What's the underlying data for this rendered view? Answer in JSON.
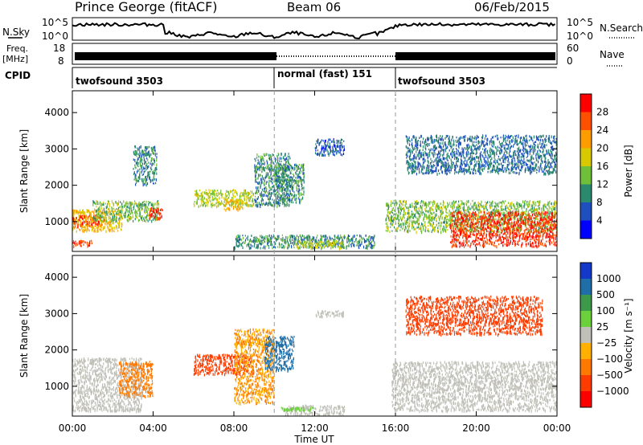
{
  "header": {
    "title": "Prince George (fitACF)",
    "beam": "Beam 06",
    "date": "06/Feb/2015"
  },
  "noise_panel": {
    "left_label": "N.Sky",
    "right_label": "N.Search",
    "left_ticks": [
      "10^5",
      "10^0"
    ],
    "right_ticks": [
      "10^5",
      "10^0"
    ]
  },
  "freq_panel": {
    "label_line1": "Freq.",
    "label_line2": "[MHz]",
    "left_ticks": [
      "18",
      "8"
    ],
    "right_ticks": [
      "60",
      "0"
    ],
    "right_label": "Nave"
  },
  "cpid_panel": {
    "label": "CPID",
    "segments": [
      {
        "name": "twofsound 3503",
        "start": 0,
        "end": 10
      },
      {
        "name": "normal (fast) 151",
        "start": 10,
        "end": 16
      },
      {
        "name": "twofsound 3503",
        "start": 16,
        "end": 24
      }
    ]
  },
  "time_axis": {
    "label": "Time UT",
    "ticks": [
      "00:00",
      "04:00",
      "08:00",
      "12:00",
      "16:00",
      "20:00",
      "00:00"
    ],
    "range_hours": [
      0,
      24
    ],
    "mode_change_hours": [
      10,
      16
    ]
  },
  "power_panel": {
    "ylabel": "Slant Range [km]",
    "yticks": [
      "1000",
      "2000",
      "3000",
      "4000"
    ],
    "colorbar_label": "Power [dB]",
    "colorbar_ticks": [
      "4",
      "8",
      "12",
      "16",
      "20",
      "24",
      "28"
    ],
    "colors": [
      "#0000ff",
      "#1f4fbf",
      "#2b8a6e",
      "#6fbf3a",
      "#d8c800",
      "#ff9c00",
      "#ff5000",
      "#ff0000"
    ]
  },
  "velocity_panel": {
    "ylabel": "Slant Range [km]",
    "yticks": [
      "1000",
      "2000",
      "3000",
      "4000"
    ],
    "colorbar_label": "Velocity [m s⁻¹]",
    "colorbar_ticks": [
      "1000",
      "500",
      "100",
      "25",
      "−25",
      "−100",
      "−500",
      "−1000"
    ],
    "colors": [
      "#1438c8",
      "#1f6ea8",
      "#3d9a4a",
      "#6ccf3c",
      "#c0c0b8",
      "#ffb000",
      "#ff7800",
      "#ff3c00",
      "#ff0000"
    ]
  },
  "chart_data": {
    "type": "heatmap",
    "title": "Prince George (fitACF)",
    "xlabel": "Time UT",
    "ylabel": "Slant Range [km]",
    "xlim_hours": [
      0,
      24
    ],
    "ylim_km": [
      180,
      4600
    ],
    "power_regions": [
      {
        "t0": 0.0,
        "t1": 1.0,
        "r0": 300,
        "r1": 500,
        "db": 28
      },
      {
        "t0": 0.0,
        "t1": 2.5,
        "r0": 700,
        "r1": 1350,
        "db": 20
      },
      {
        "t0": 0.0,
        "t1": 1.5,
        "r0": 850,
        "r1": 1200,
        "db": 26
      },
      {
        "t0": 1.0,
        "t1": 4.3,
        "r0": 1000,
        "r1": 1600,
        "db": 14
      },
      {
        "t0": 3.8,
        "t1": 4.5,
        "r0": 1050,
        "r1": 1400,
        "db": 28
      },
      {
        "t0": 3.0,
        "t1": 4.2,
        "r0": 2000,
        "r1": 3100,
        "db": 10
      },
      {
        "t0": 6.0,
        "t1": 9.0,
        "r0": 1400,
        "r1": 1900,
        "db": 16
      },
      {
        "t0": 7.5,
        "t1": 8.5,
        "r0": 1300,
        "r1": 1650,
        "db": 20
      },
      {
        "t0": 9.0,
        "t1": 10.8,
        "r0": 1400,
        "r1": 2900,
        "db": 10
      },
      {
        "t0": 8.0,
        "t1": 15.0,
        "r0": 250,
        "r1": 650,
        "db": 10
      },
      {
        "t0": 11.0,
        "t1": 13.5,
        "r0": 250,
        "r1": 500,
        "db": 16
      },
      {
        "t0": 10.0,
        "t1": 11.5,
        "r0": 1500,
        "r1": 2600,
        "db": 10
      },
      {
        "t0": 12.0,
        "t1": 13.5,
        "r0": 2800,
        "r1": 3300,
        "db": 6
      },
      {
        "t0": 15.5,
        "t1": 24.0,
        "r0": 700,
        "r1": 1600,
        "db": 14
      },
      {
        "t0": 18.7,
        "t1": 24.0,
        "r0": 300,
        "r1": 1300,
        "db": 28
      },
      {
        "t0": 16.5,
        "t1": 24.0,
        "r0": 2300,
        "r1": 3400,
        "db": 8
      }
    ],
    "velocity_regions": [
      {
        "t0": 0.0,
        "t1": 3.5,
        "r0": 300,
        "r1": 1800,
        "v": 0
      },
      {
        "t0": 2.3,
        "t1": 4.0,
        "r0": 700,
        "r1": 1700,
        "v": -200
      },
      {
        "t0": 6.0,
        "t1": 9.0,
        "r0": 1300,
        "r1": 1900,
        "v": -300
      },
      {
        "t0": 8.0,
        "t1": 10.0,
        "r0": 500,
        "r1": 2600,
        "v": -100
      },
      {
        "t0": 9.5,
        "t1": 11.0,
        "r0": 1400,
        "r1": 2400,
        "v": 300
      },
      {
        "t0": 10.5,
        "t1": 13.5,
        "r0": 200,
        "r1": 500,
        "v": 0
      },
      {
        "t0": 10.3,
        "t1": 12.0,
        "r0": 300,
        "r1": 450,
        "v": 80
      },
      {
        "t0": 12.0,
        "t1": 13.5,
        "r0": 2900,
        "r1": 3100,
        "v": 0
      },
      {
        "t0": 15.8,
        "t1": 24.0,
        "r0": 300,
        "r1": 1700,
        "v": 0
      },
      {
        "t0": 16.5,
        "t1": 23.3,
        "r0": 2400,
        "r1": 3500,
        "v": -400
      }
    ]
  }
}
